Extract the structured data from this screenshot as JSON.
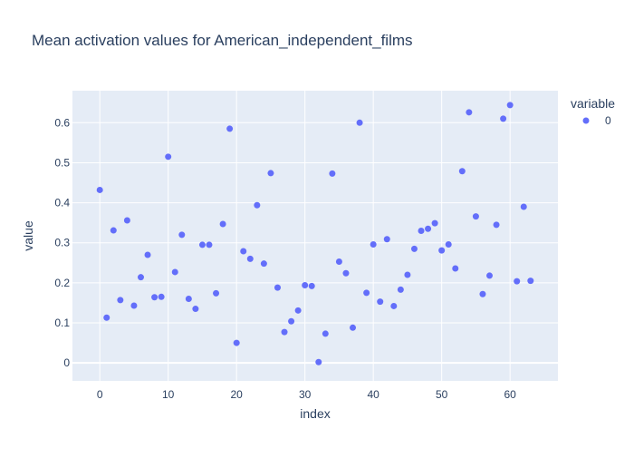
{
  "chart_data": {
    "type": "scatter",
    "title": "Mean activation values for American_independent_films",
    "xlabel": "index",
    "ylabel": "value",
    "xlim": [
      -4,
      67
    ],
    "ylim": [
      -0.045,
      0.68
    ],
    "xticks": [
      0,
      10,
      20,
      30,
      40,
      50,
      60
    ],
    "yticks": [
      0,
      0.1,
      0.2,
      0.3,
      0.4,
      0.5,
      0.6
    ],
    "grid": true,
    "legend": {
      "title": "variable",
      "placement": "top-right"
    },
    "colors": {
      "series": "#636efa",
      "plot_bg": "#e5ecf6",
      "grid": "#ffffff",
      "text": "#2a3f5f"
    },
    "series": [
      {
        "name": "0",
        "x": [
          0,
          1,
          2,
          3,
          4,
          5,
          6,
          7,
          8,
          9,
          10,
          11,
          12,
          13,
          14,
          15,
          16,
          17,
          18,
          19,
          20,
          21,
          22,
          23,
          24,
          25,
          26,
          27,
          28,
          29,
          30,
          31,
          32,
          33,
          34,
          35,
          36,
          37,
          38,
          39,
          40,
          41,
          42,
          43,
          44,
          45,
          46,
          47,
          48,
          49,
          50,
          51,
          52,
          53,
          54,
          55,
          56,
          57,
          58,
          59,
          60,
          61,
          62,
          63
        ],
        "values": [
          0.432,
          0.113,
          0.331,
          0.157,
          0.356,
          0.143,
          0.214,
          0.27,
          0.164,
          0.165,
          0.515,
          0.227,
          0.32,
          0.16,
          0.135,
          0.295,
          0.295,
          0.174,
          0.347,
          0.585,
          0.05,
          0.279,
          0.26,
          0.394,
          0.248,
          0.474,
          0.188,
          0.077,
          0.104,
          0.131,
          0.194,
          0.192,
          0.002,
          0.073,
          0.473,
          0.253,
          0.224,
          0.088,
          0.6,
          0.175,
          0.296,
          0.153,
          0.309,
          0.142,
          0.183,
          0.22,
          0.285,
          0.33,
          0.335,
          0.349,
          0.281,
          0.296,
          0.236,
          0.479,
          0.626,
          0.366,
          0.172,
          0.218,
          0.345,
          0.61,
          0.644,
          0.204,
          0.39,
          0.205
        ]
      }
    ]
  }
}
